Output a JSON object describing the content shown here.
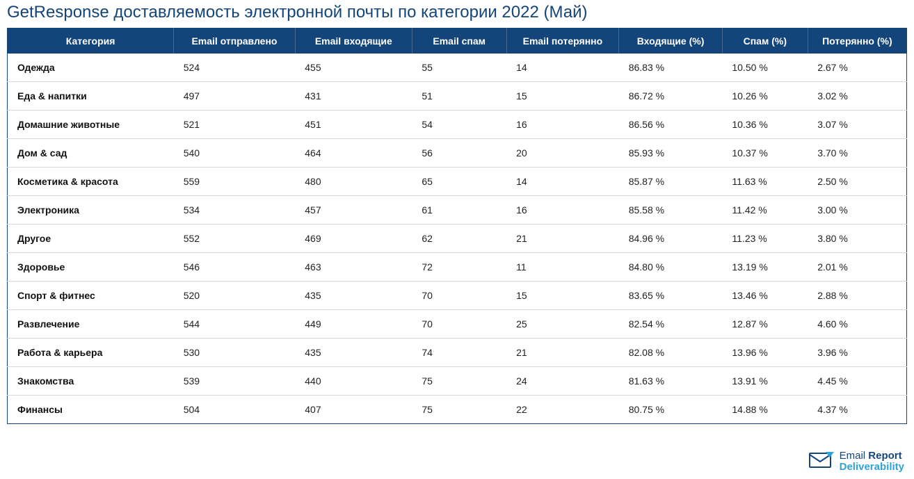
{
  "title": "GetResponse доставляемость электронной почты по категории 2022 (Май)",
  "table": {
    "type": "table",
    "header_bg": "#14457a",
    "header_color": "#ffffff",
    "border_color": "#14457a",
    "row_divider_color": "#d8d8d8",
    "title_color": "#14457a",
    "columns": [
      "Категория",
      "Email отправлено",
      "Email входящие",
      "Email спам",
      "Email потерянно",
      "Входящие (%)",
      "Спам (%)",
      "Потерянно (%)"
    ],
    "col_widths_pct": [
      18.5,
      13.5,
      13.0,
      10.5,
      12.5,
      11.5,
      9.5,
      11.0
    ],
    "rows": [
      [
        "Одежда",
        "524",
        "455",
        "55",
        "14",
        "86.83 %",
        "10.50 %",
        "2.67 %"
      ],
      [
        "Еда & напитки",
        "497",
        "431",
        "51",
        "15",
        "86.72 %",
        "10.26 %",
        "3.02 %"
      ],
      [
        "Домашние животные",
        "521",
        "451",
        "54",
        "16",
        "86.56 %",
        "10.36 %",
        "3.07 %"
      ],
      [
        "Дом & сад",
        "540",
        "464",
        "56",
        "20",
        "85.93 %",
        "10.37 %",
        "3.70 %"
      ],
      [
        "Косметика & красота",
        "559",
        "480",
        "65",
        "14",
        "85.87 %",
        "11.63 %",
        "2.50 %"
      ],
      [
        "Электроника",
        "534",
        "457",
        "61",
        "16",
        "85.58 %",
        "11.42 %",
        "3.00 %"
      ],
      [
        "Другое",
        "552",
        "469",
        "62",
        "21",
        "84.96 %",
        "11.23 %",
        "3.80 %"
      ],
      [
        "Здоровье",
        "546",
        "463",
        "72",
        "11",
        "84.80 %",
        "13.19 %",
        "2.01 %"
      ],
      [
        "Спорт & фитнес",
        "520",
        "435",
        "70",
        "15",
        "83.65 %",
        "13.46 %",
        "2.88 %"
      ],
      [
        "Развлечение",
        "544",
        "449",
        "70",
        "25",
        "82.54 %",
        "12.87 %",
        "4.60 %"
      ],
      [
        "Работа & карьера",
        "530",
        "435",
        "74",
        "21",
        "82.08 %",
        "13.96 %",
        "3.96 %"
      ],
      [
        "Знакомства",
        "539",
        "440",
        "75",
        "24",
        "81.63 %",
        "13.91 %",
        "4.45 %"
      ],
      [
        "Финансы",
        "504",
        "407",
        "75",
        "22",
        "80.75 %",
        "14.88 %",
        "4.37 %"
      ]
    ]
  },
  "logo": {
    "icon_primary": "#14457a",
    "icon_accent": "#2fa3d6",
    "line1_a": "Email ",
    "line1_b": "Report",
    "line2": "Deliverability"
  }
}
